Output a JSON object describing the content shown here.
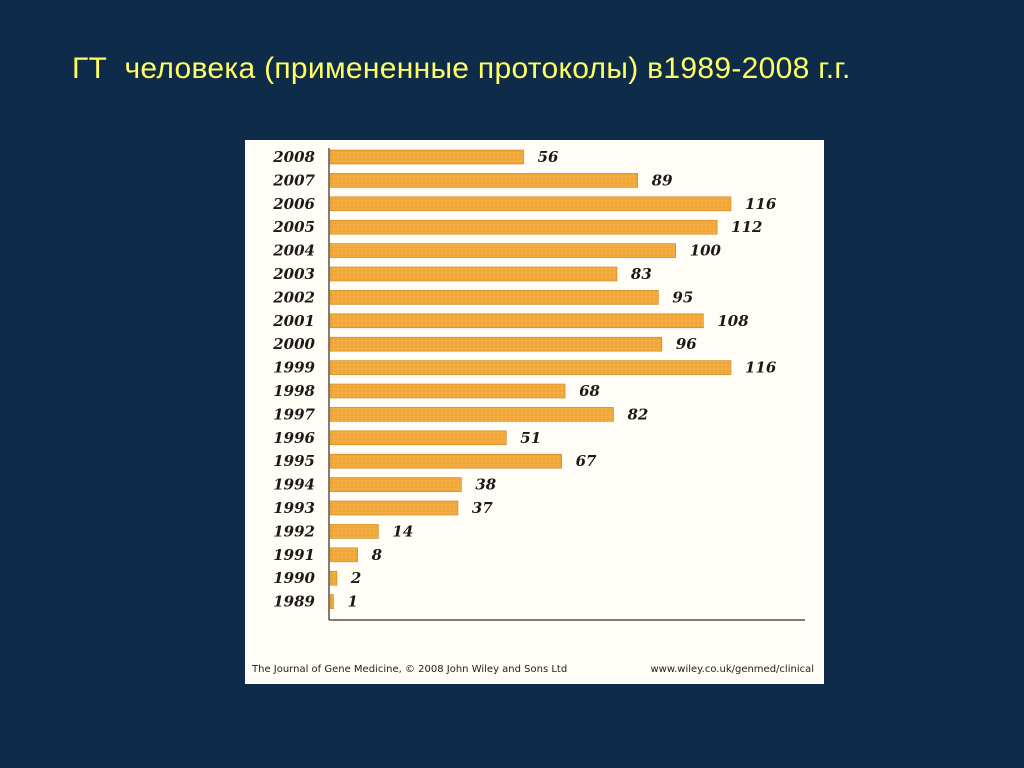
{
  "slide": {
    "title": "ГТ  человека (примененные протоколы) в1989-2008 г.г."
  },
  "figure": {
    "credit_left": "The Journal of Gene Medicine, © 2008 John Wiley and Sons Ltd",
    "credit_right": "www.wiley.co.uk/genmed/clinical"
  },
  "colors": {
    "background": "#0f2b4a",
    "title": "#ffff66",
    "bar": "#f2a93b",
    "figure_bg": "#fffdf6"
  },
  "chart_data": {
    "type": "bar",
    "orientation": "horizontal",
    "title": "",
    "xlabel": "",
    "ylabel": "",
    "xlim": [
      0,
      130
    ],
    "grid": false,
    "categories": [
      "2008",
      "2007",
      "2006",
      "2005",
      "2004",
      "2003",
      "2002",
      "2001",
      "2000",
      "1999",
      "1998",
      "1997",
      "1996",
      "1995",
      "1994",
      "1993",
      "1992",
      "1991",
      "1990",
      "1989"
    ],
    "values": [
      56,
      89,
      116,
      112,
      100,
      83,
      95,
      108,
      96,
      116,
      68,
      82,
      51,
      67,
      38,
      37,
      14,
      8,
      2,
      1
    ]
  }
}
